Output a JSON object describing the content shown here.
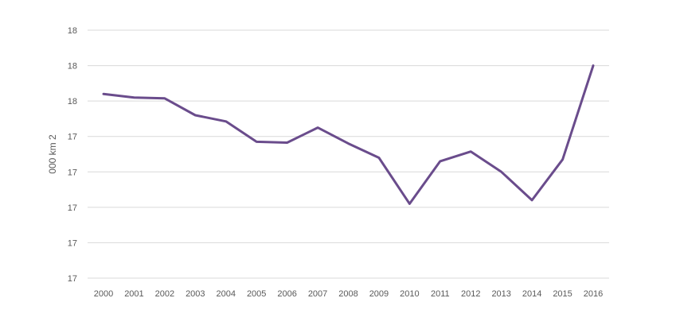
{
  "chart_data": {
    "type": "line",
    "title": "",
    "xlabel": "",
    "ylabel": "000 km 2",
    "ytick_labels": [
      "18",
      "18",
      "18",
      "17",
      "17",
      "17",
      "17",
      "17"
    ],
    "ylim": [
      16.6,
      18.0
    ],
    "grid": true,
    "legend": "none",
    "x": [
      "2000",
      "2001",
      "2002",
      "2003",
      "2004",
      "2005",
      "2006",
      "2007",
      "2008",
      "2009",
      "2010",
      "2011",
      "2012",
      "2013",
      "2014",
      "2015",
      "2016"
    ],
    "series": [
      {
        "name": "",
        "color": "#6a4c8c",
        "values": [
          17.64,
          17.62,
          17.615,
          17.52,
          17.485,
          17.37,
          17.365,
          17.45,
          17.36,
          17.28,
          17.02,
          17.26,
          17.315,
          17.2,
          17.04,
          17.27,
          17.8
        ]
      }
    ]
  }
}
